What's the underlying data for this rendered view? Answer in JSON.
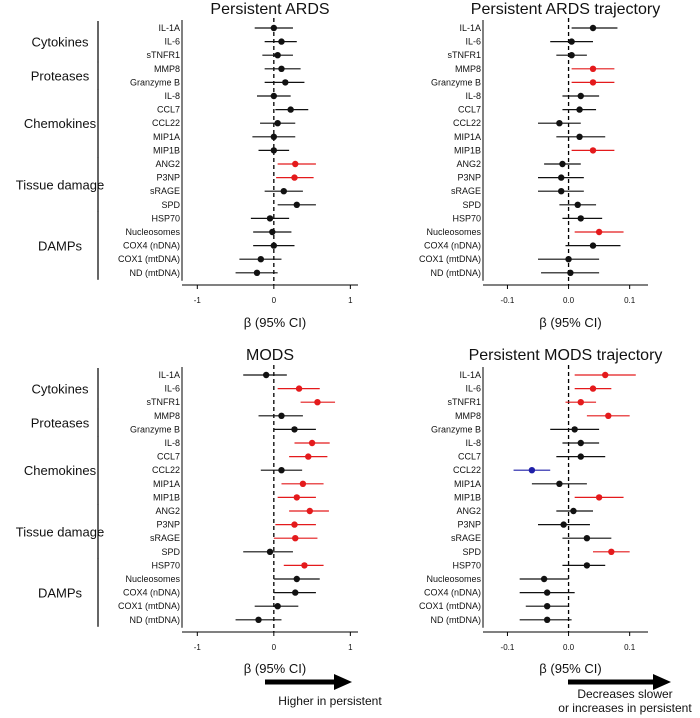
{
  "colors": {
    "black": "#111111",
    "red": "#e41a1c",
    "blue": "#1f1fa8"
  },
  "chart_data": [
    {
      "type": "scatter",
      "title": "Persistent ARDS",
      "xlabel": "β (95% CI)",
      "xlim": [
        -1.2,
        1.1
      ],
      "xticks": [
        "-1",
        "0",
        "1"
      ],
      "xtick_values": [
        -1,
        0,
        1
      ],
      "groups": [
        {
          "name": "Cytokines",
          "start": 0,
          "end": 2
        },
        {
          "name": "Proteases",
          "start": 3,
          "end": 4
        },
        {
          "name": "Chemokines",
          "start": 5,
          "end": 9
        },
        {
          "name": "Tissue damage",
          "start": 10,
          "end": 13
        },
        {
          "name": "DAMPs",
          "start": 14,
          "end": 18
        }
      ],
      "categories": [
        "IL-1A",
        "IL-6",
        "sTNFR1",
        "MMP8",
        "Granzyme B",
        "IL-8",
        "CCL7",
        "CCL22",
        "MIP1A",
        "MIP1B",
        "ANG2",
        "P3NP",
        "sRAGE",
        "SPD",
        "HSP70",
        "Nucleosomes",
        "COX4 (nDNA)",
        "COX1 (mtDNA)",
        "ND (mtDNA)"
      ],
      "estimate": [
        0.0,
        0.1,
        0.05,
        0.1,
        0.15,
        0.0,
        0.22,
        0.05,
        0.0,
        0.0,
        0.28,
        0.27,
        0.13,
        0.3,
        -0.05,
        -0.02,
        0.0,
        -0.17,
        -0.22
      ],
      "lower": [
        -0.25,
        -0.12,
        -0.15,
        -0.12,
        -0.12,
        -0.22,
        0.02,
        -0.18,
        -0.28,
        -0.2,
        0.05,
        0.03,
        -0.12,
        0.05,
        -0.3,
        -0.27,
        -0.27,
        -0.45,
        -0.5
      ],
      "upper": [
        0.25,
        0.3,
        0.25,
        0.35,
        0.4,
        0.22,
        0.45,
        0.28,
        0.28,
        0.2,
        0.55,
        0.52,
        0.38,
        0.55,
        0.2,
        0.23,
        0.27,
        0.1,
        0.05
      ],
      "color": [
        "black",
        "black",
        "black",
        "black",
        "black",
        "black",
        "black",
        "black",
        "black",
        "black",
        "red",
        "red",
        "black",
        "black",
        "black",
        "black",
        "black",
        "black",
        "black"
      ]
    },
    {
      "type": "scatter",
      "title": "Persistent ARDS trajectory",
      "xlabel": "β (95% CI)",
      "xlim": [
        -0.14,
        0.13
      ],
      "xticks": [
        "-0.1",
        "0.0",
        "0.1"
      ],
      "xtick_values": [
        -0.1,
        0.0,
        0.1
      ],
      "groups": [],
      "categories": [
        "IL-1A",
        "IL-6",
        "sTNFR1",
        "MMP8",
        "Granzyme B",
        "IL-8",
        "CCL7",
        "CCL22",
        "MIP1A",
        "MIP1B",
        "ANG2",
        "P3NP",
        "sRAGE",
        "SPD",
        "HSP70",
        "Nucleosomes",
        "COX4 (nDNA)",
        "COX1 (mtDNA)",
        "ND (mtDNA)"
      ],
      "estimate": [
        0.04,
        0.005,
        0.005,
        0.04,
        0.04,
        0.02,
        0.018,
        -0.015,
        0.018,
        0.04,
        -0.01,
        -0.012,
        -0.012,
        0.015,
        0.02,
        0.05,
        0.04,
        0.0,
        0.003
      ],
      "lower": [
        0.005,
        -0.03,
        -0.02,
        0.005,
        0.005,
        -0.01,
        -0.01,
        -0.05,
        -0.02,
        0.005,
        -0.04,
        -0.05,
        -0.05,
        -0.015,
        -0.01,
        0.01,
        -0.005,
        -0.05,
        -0.045
      ],
      "upper": [
        0.08,
        0.04,
        0.03,
        0.075,
        0.075,
        0.05,
        0.045,
        0.02,
        0.06,
        0.075,
        0.02,
        0.025,
        0.025,
        0.045,
        0.055,
        0.09,
        0.085,
        0.05,
        0.05
      ],
      "color": [
        "black",
        "black",
        "black",
        "red",
        "red",
        "black",
        "black",
        "black",
        "black",
        "red",
        "black",
        "black",
        "black",
        "black",
        "black",
        "red",
        "black",
        "black",
        "black"
      ]
    },
    {
      "type": "scatter",
      "title": "MODS",
      "xlabel": "β (95% CI)",
      "xlim": [
        -1.2,
        1.1
      ],
      "xticks": [
        "-1",
        "0",
        "1"
      ],
      "xtick_values": [
        -1,
        0,
        1
      ],
      "groups": [
        {
          "name": "Cytokines",
          "start": 0,
          "end": 2
        },
        {
          "name": "Proteases",
          "start": 3,
          "end": 4
        },
        {
          "name": "Chemokines",
          "start": 5,
          "end": 9
        },
        {
          "name": "Tissue damage",
          "start": 10,
          "end": 13
        },
        {
          "name": "DAMPs",
          "start": 14,
          "end": 18
        }
      ],
      "categories": [
        "IL-1A",
        "IL-6",
        "sTNFR1",
        "MMP8",
        "Granzyme B",
        "IL-8",
        "CCL7",
        "CCL22",
        "MIP1A",
        "MIP1B",
        "ANG2",
        "P3NP",
        "sRAGE",
        "SPD",
        "HSP70",
        "Nucleosomes",
        "COX4 (nDNA)",
        "COX1 (mtDNA)",
        "ND (mtDNA)"
      ],
      "estimate": [
        -0.1,
        0.33,
        0.57,
        0.1,
        0.27,
        0.5,
        0.45,
        0.1,
        0.38,
        0.3,
        0.47,
        0.27,
        0.28,
        -0.05,
        0.4,
        0.3,
        0.28,
        0.05,
        -0.2
      ],
      "lower": [
        -0.4,
        0.05,
        0.35,
        -0.2,
        0.0,
        0.27,
        0.2,
        -0.17,
        0.1,
        0.05,
        0.2,
        0.02,
        0.0,
        -0.4,
        0.13,
        0.0,
        0.0,
        -0.25,
        -0.5
      ],
      "upper": [
        0.17,
        0.6,
        0.8,
        0.38,
        0.55,
        0.73,
        0.7,
        0.37,
        0.65,
        0.55,
        0.72,
        0.55,
        0.57,
        0.25,
        0.65,
        0.6,
        0.55,
        0.32,
        0.1
      ],
      "color": [
        "black",
        "red",
        "red",
        "black",
        "black",
        "red",
        "red",
        "black",
        "red",
        "red",
        "red",
        "red",
        "red",
        "black",
        "red",
        "black",
        "black",
        "black",
        "black"
      ]
    },
    {
      "type": "scatter",
      "title": "Persistent MODS trajectory",
      "xlabel": "β (95% CI)",
      "xlim": [
        -0.14,
        0.13
      ],
      "xticks": [
        "-0.1",
        "0.0",
        "0.1"
      ],
      "xtick_values": [
        -0.1,
        0.0,
        0.1
      ],
      "groups": [],
      "categories": [
        "IL-1A",
        "IL-6",
        "sTNFR1",
        "MMP8",
        "Granzyme B",
        "IL-8",
        "CCL7",
        "CCL22",
        "MIP1A",
        "MIP1B",
        "ANG2",
        "P3NP",
        "sRAGE",
        "SPD",
        "HSP70",
        "Nucleosomes",
        "COX4 (nDNA)",
        "COX1 (mtDNA)",
        "ND (mtDNA)"
      ],
      "estimate": [
        0.06,
        0.04,
        0.02,
        0.065,
        0.01,
        0.02,
        0.02,
        -0.06,
        -0.015,
        0.05,
        0.008,
        -0.008,
        0.03,
        0.07,
        0.03,
        -0.04,
        -0.035,
        -0.035,
        -0.035
      ],
      "lower": [
        0.01,
        0.01,
        -0.005,
        0.03,
        -0.03,
        -0.01,
        -0.02,
        -0.09,
        -0.06,
        0.01,
        -0.02,
        -0.05,
        -0.01,
        0.04,
        -0.01,
        -0.08,
        -0.08,
        -0.07,
        -0.08
      ],
      "upper": [
        0.11,
        0.07,
        0.045,
        0.1,
        0.05,
        0.05,
        0.06,
        -0.03,
        0.03,
        0.09,
        0.04,
        0.035,
        0.07,
        0.1,
        0.06,
        0.0,
        0.01,
        0.0,
        0.005
      ],
      "color": [
        "red",
        "red",
        "red",
        "red",
        "black",
        "black",
        "black",
        "blue",
        "black",
        "red",
        "black",
        "black",
        "black",
        "red",
        "black",
        "black",
        "black",
        "black",
        "black"
      ]
    }
  ],
  "annotations": {
    "left_arrow_label": "Higher in persistent",
    "right_arrow_label_line1": "Decreases slower",
    "right_arrow_label_line2": "or increases in persistent"
  }
}
